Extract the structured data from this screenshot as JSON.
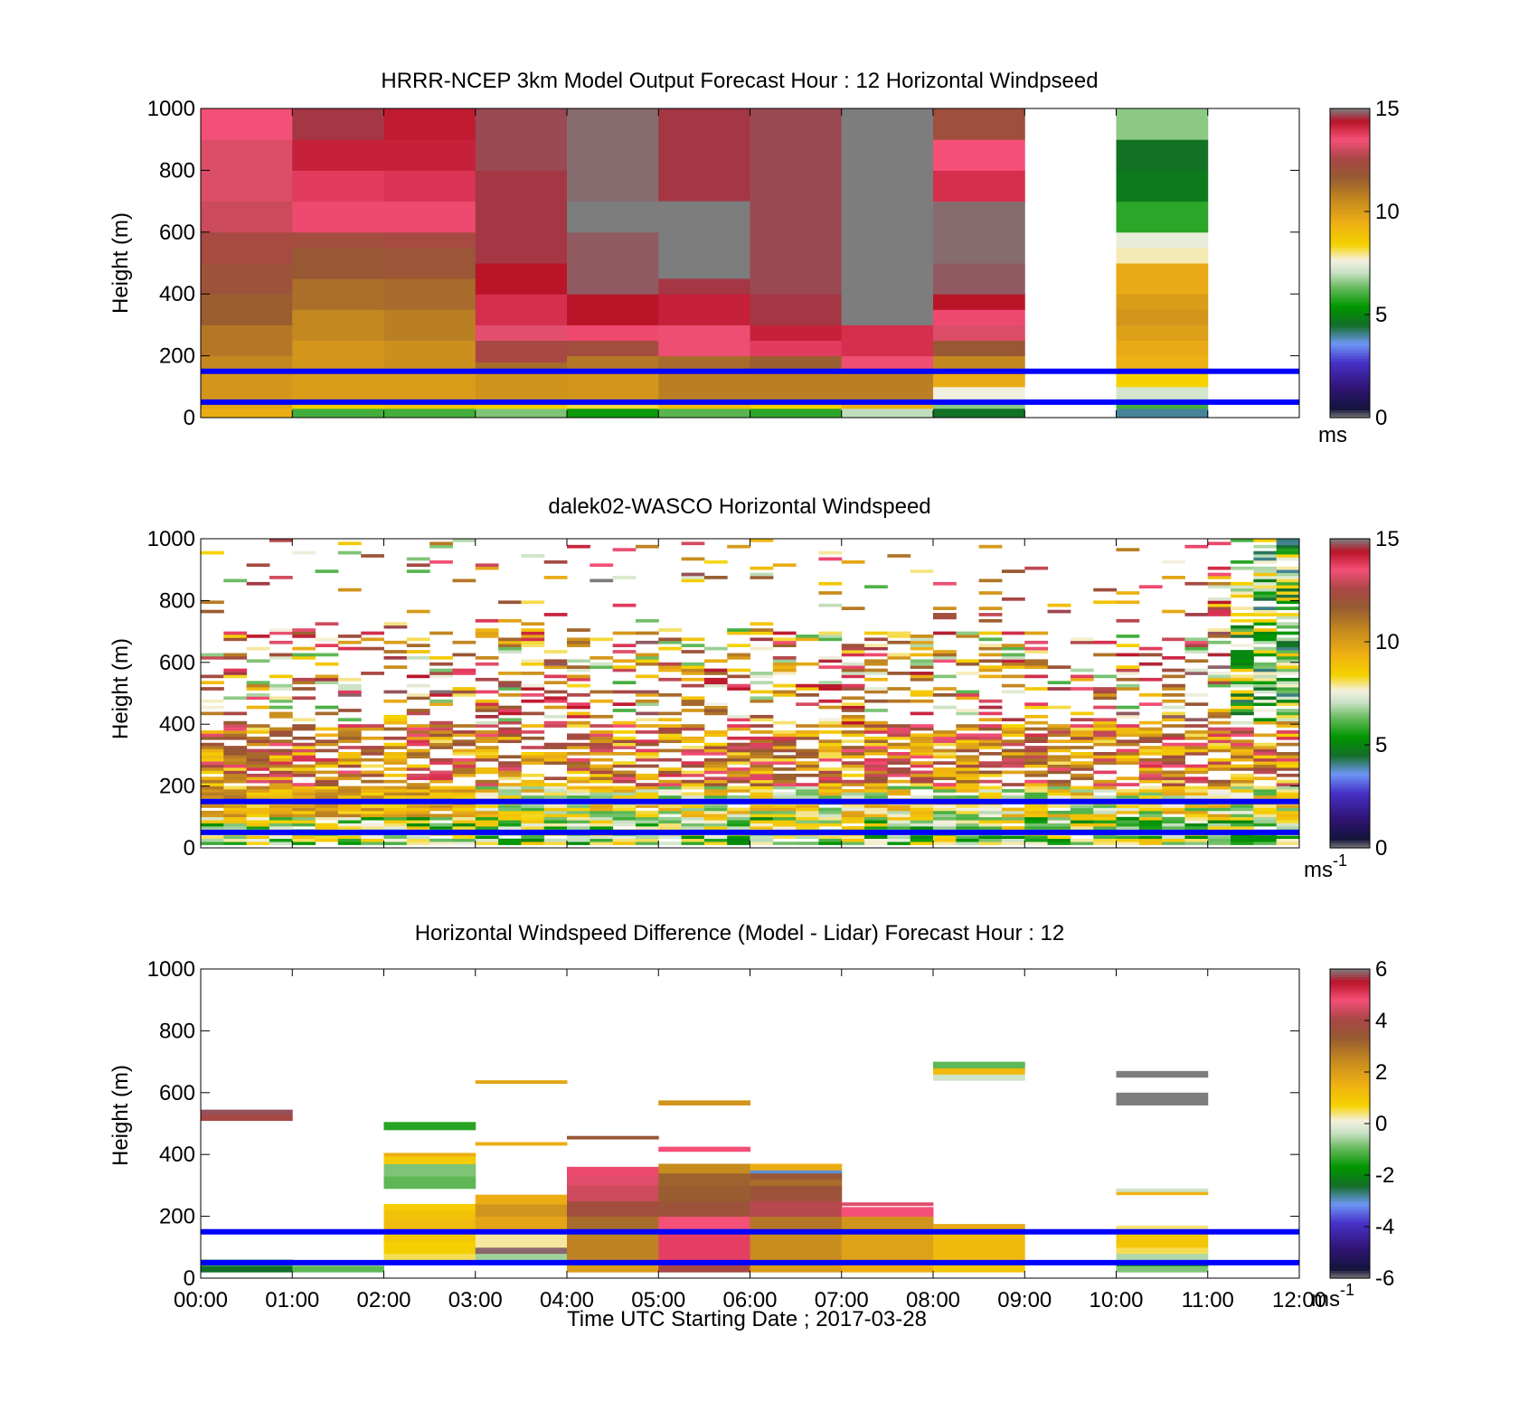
{
  "figure": {
    "xlabel": "Time UTC  Starting Date ; 2017-03-28",
    "shared_x_ticks": [
      "00:00",
      "01:00",
      "02:00",
      "03:00",
      "04:00",
      "05:00",
      "06:00",
      "07:00",
      "08:00",
      "09:00",
      "10:00",
      "11:00",
      "12:00"
    ],
    "reference_lines_m": [
      50,
      150
    ],
    "reference_line_color": "#0000ff"
  },
  "chart_data": [
    {
      "type": "heatmap",
      "title": "HRRR-NCEP 3km Model Output   Forecast Hour : 12 Horizontal Windpseed",
      "xlabel": "",
      "ylabel": "Height (m)",
      "xlim": [
        0,
        12
      ],
      "ylim": [
        0,
        1000
      ],
      "y_ticks": [
        "0",
        "200",
        "400",
        "600",
        "800",
        "1000"
      ],
      "colorbar": {
        "min": 0,
        "max": 15,
        "ticks": [
          "0",
          "5",
          "10",
          "15"
        ],
        "unit": "ms",
        "unit_sup": ""
      },
      "columns": [
        {
          "t": 0,
          "w": 1,
          "cells": [
            [
              0,
              30,
              9.5
            ],
            [
              30,
              60,
              9.8
            ],
            [
              60,
              150,
              10.2
            ],
            [
              150,
              200,
              10.6
            ],
            [
              200,
              300,
              11
            ],
            [
              300,
              400,
              11.6
            ],
            [
              400,
              500,
              12.0
            ],
            [
              500,
              600,
              12.4
            ],
            [
              600,
              700,
              13.0
            ],
            [
              700,
              900,
              13.2
            ],
            [
              900,
              1000,
              13.5
            ]
          ]
        },
        {
          "t": 1,
          "w": 1,
          "cells": [
            [
              0,
              30,
              6
            ],
            [
              30,
              60,
              8.5
            ],
            [
              60,
              150,
              10
            ],
            [
              150,
              250,
              10.2
            ],
            [
              250,
              350,
              10.6
            ],
            [
              350,
              450,
              11.2
            ],
            [
              450,
              550,
              11.8
            ],
            [
              550,
              600,
              12.3
            ],
            [
              600,
              700,
              13.6
            ],
            [
              700,
              800,
              13.8
            ],
            [
              800,
              900,
              14.2
            ],
            [
              900,
              1000,
              14.6
            ]
          ]
        },
        {
          "t": 2,
          "w": 1,
          "cells": [
            [
              0,
              30,
              6
            ],
            [
              30,
              60,
              8.8
            ],
            [
              60,
              150,
              10
            ],
            [
              150,
              250,
              10.4
            ],
            [
              250,
              350,
              10.8
            ],
            [
              350,
              450,
              11.3
            ],
            [
              450,
              550,
              11.9
            ],
            [
              550,
              600,
              12.4
            ],
            [
              600,
              700,
              13.6
            ],
            [
              700,
              800,
              13.9
            ],
            [
              800,
              900,
              14.2
            ],
            [
              900,
              1000,
              14.3
            ]
          ]
        },
        {
          "t": 3,
          "w": 1,
          "cells": [
            [
              0,
              30,
              6.5
            ],
            [
              30,
              60,
              8.5
            ],
            [
              60,
              150,
              10.3
            ],
            [
              150,
              180,
              11.3
            ],
            [
              180,
              250,
              12.5
            ],
            [
              250,
              300,
              13.3
            ],
            [
              300,
              400,
              14.0
            ],
            [
              400,
              500,
              14.4
            ],
            [
              500,
              800,
              14.6
            ],
            [
              800,
              1000,
              14.7
            ]
          ]
        },
        {
          "t": 4,
          "w": 1,
          "cells": [
            [
              0,
              30,
              5.5
            ],
            [
              30,
              60,
              8.2
            ],
            [
              60,
              150,
              10.2
            ],
            [
              150,
              200,
              11.0
            ],
            [
              200,
              250,
              12.3
            ],
            [
              250,
              300,
              13.6
            ],
            [
              300,
              400,
              14.4
            ],
            [
              400,
              600,
              14.8
            ],
            [
              600,
              700,
              15.0
            ],
            [
              700,
              1000,
              14.9
            ]
          ]
        },
        {
          "t": 5,
          "w": 1,
          "cells": [
            [
              0,
              30,
              6.2
            ],
            [
              30,
              60,
              9.0
            ],
            [
              60,
              150,
              10.8
            ],
            [
              150,
              200,
              11.3
            ],
            [
              200,
              300,
              13.4
            ],
            [
              300,
              400,
              14.2
            ],
            [
              400,
              450,
              14.6
            ],
            [
              450,
              700,
              14.9
            ],
            [
              700,
              1000,
              14.6
            ]
          ]
        },
        {
          "t": 5,
          "w": 1,
          "y0": 450,
          "y1": 700,
          "gray": true
        },
        {
          "t": 6,
          "w": 1,
          "cells": [
            [
              0,
              30,
              5.8
            ],
            [
              30,
              60,
              8.4
            ],
            [
              60,
              150,
              10.8
            ],
            [
              150,
              200,
              11.6
            ],
            [
              200,
              250,
              13.8
            ],
            [
              250,
              300,
              14.2
            ],
            [
              300,
              400,
              14.6
            ],
            [
              400,
              1000,
              14.7
            ]
          ]
        },
        {
          "t": 7,
          "w": 1,
          "cells": [
            [
              0,
              30,
              7
            ],
            [
              30,
              60,
              9.4
            ],
            [
              60,
              150,
              10.8
            ],
            [
              150,
              200,
              13.4
            ],
            [
              200,
              300,
              14.0
            ],
            [
              300,
              1000,
              15.5
            ]
          ]
        },
        {
          "t": 8,
          "w": 1,
          "cells": [
            [
              0,
              30,
              4.6
            ],
            [
              30,
              60,
              6.6
            ],
            [
              60,
              100,
              7.6
            ],
            [
              100,
              150,
              9.6
            ],
            [
              150,
              200,
              10.6
            ],
            [
              200,
              250,
              11.8
            ],
            [
              250,
              300,
              13.2
            ],
            [
              300,
              350,
              13.6
            ],
            [
              350,
              400,
              14.4
            ],
            [
              400,
              500,
              14.8
            ],
            [
              500,
              700,
              14.9
            ],
            [
              700,
              800,
              14.0
            ],
            [
              800,
              900,
              13.5
            ],
            [
              900,
              1000,
              12.2
            ]
          ]
        },
        {
          "t": 10,
          "w": 1,
          "cells": [
            [
              0,
              30,
              4.0
            ],
            [
              30,
              60,
              6.0
            ],
            [
              60,
              100,
              7.2
            ],
            [
              100,
              150,
              8.4
            ],
            [
              150,
              200,
              9.4
            ],
            [
              200,
              250,
              9.6
            ],
            [
              250,
              300,
              9.9
            ],
            [
              300,
              350,
              10.2
            ],
            [
              350,
              400,
              10.0
            ],
            [
              400,
              500,
              9.6
            ],
            [
              500,
              550,
              7.8
            ],
            [
              550,
              600,
              7.5
            ],
            [
              600,
              700,
              5.8
            ],
            [
              700,
              800,
              4.8
            ],
            [
              800,
              900,
              4.6
            ],
            [
              900,
              1000,
              6.6
            ]
          ]
        }
      ]
    },
    {
      "type": "heatmap",
      "title": "dalek02-WASCO  Horizontal Windspeed",
      "xlabel": "",
      "ylabel": "Height (m)",
      "xlim": [
        0,
        12
      ],
      "ylim": [
        0,
        1000
      ],
      "y_ticks": [
        "0",
        "200",
        "400",
        "600",
        "800",
        "1000"
      ],
      "colorbar": {
        "min": 0,
        "max": 15,
        "ticks": [
          "0",
          "5",
          "10",
          "15"
        ],
        "unit": "ms",
        "unit_sup": "-1"
      },
      "dense_profile": {
        "columns": 48,
        "seed": 28
      }
    },
    {
      "type": "heatmap",
      "title": "Horizontal Windspeed Difference (Model - Lidar) Forecast Hour : 12",
      "xlabel": "Time UTC  Starting Date ; 2017-03-28",
      "ylabel": "Height (m)",
      "xlim": [
        0,
        12
      ],
      "ylim": [
        0,
        1000
      ],
      "y_ticks": [
        "0",
        "200",
        "400",
        "600",
        "800",
        "1000"
      ],
      "colorbar": {
        "min": -6,
        "max": 6,
        "ticks": [
          "-6",
          "-4",
          "-2",
          "0",
          "2",
          "4",
          "6"
        ],
        "unit": "ms",
        "unit_sup": "-1"
      },
      "columns": [
        {
          "t": 0,
          "w": 1,
          "cells": [
            [
              20,
              40,
              -2.4
            ],
            [
              40,
              60,
              -1.2
            ],
            [
              510,
              530,
              4.0
            ],
            [
              530,
              545,
              5.8
            ]
          ]
        },
        {
          "t": 1,
          "w": 1,
          "cells": [
            [
              20,
              40,
              -1.0
            ]
          ]
        },
        {
          "t": 2,
          "w": 1,
          "cells": [
            [
              60,
              80,
              0.5
            ],
            [
              80,
              120,
              0.8
            ],
            [
              120,
              150,
              1.0
            ],
            [
              150,
              190,
              1.3
            ],
            [
              190,
              220,
              1.1
            ],
            [
              220,
              240,
              0.9
            ],
            [
              290,
              330,
              -1.0
            ],
            [
              330,
              370,
              -0.8
            ],
            [
              370,
              395,
              0.9
            ],
            [
              395,
              405,
              1.6
            ],
            [
              480,
              505,
              -1.4
            ]
          ]
        },
        {
          "t": 3,
          "w": 1,
          "cells": [
            [
              60,
              80,
              -0.6
            ],
            [
              80,
              100,
              5.9
            ],
            [
              100,
              150,
              0.3
            ],
            [
              150,
              200,
              1.8
            ],
            [
              200,
              240,
              2.2
            ],
            [
              240,
              270,
              1.6
            ],
            [
              430,
              440,
              1.6
            ],
            [
              630,
              640,
              1.8
            ]
          ]
        },
        {
          "t": 4,
          "w": 1,
          "cells": [
            [
              20,
              60,
              2.0
            ],
            [
              60,
              150,
              2.6
            ],
            [
              150,
              200,
              3.0
            ],
            [
              200,
              250,
              3.8
            ],
            [
              250,
              300,
              4.4
            ],
            [
              300,
              330,
              4.6
            ],
            [
              330,
              360,
              4.9
            ],
            [
              450,
              460,
              3.5
            ]
          ]
        },
        {
          "t": 5,
          "w": 1,
          "cells": [
            [
              20,
              60,
              4.0
            ],
            [
              60,
              150,
              5.0
            ],
            [
              150,
              200,
              4.8
            ],
            [
              200,
              250,
              3.6
            ],
            [
              250,
              300,
              3.3
            ],
            [
              300,
              340,
              3.2
            ],
            [
              340,
              370,
              2.4
            ],
            [
              410,
              425,
              4.8
            ],
            [
              560,
              575,
              2.2
            ]
          ]
        },
        {
          "t": 6,
          "w": 1,
          "cells": [
            [
              20,
              60,
              2.0
            ],
            [
              60,
              150,
              2.4
            ],
            [
              150,
              200,
              2.8
            ],
            [
              200,
              250,
              4.2
            ],
            [
              250,
              300,
              3.6
            ],
            [
              300,
              320,
              3.0
            ],
            [
              320,
              340,
              3.5
            ],
            [
              340,
              350,
              -3.0
            ],
            [
              350,
              370,
              1.6
            ]
          ]
        },
        {
          "t": 7,
          "w": 1,
          "cells": [
            [
              20,
              60,
              1.6
            ],
            [
              60,
              150,
              1.9
            ],
            [
              150,
              200,
              2.2
            ],
            [
              200,
              230,
              4.8
            ],
            [
              235,
              245,
              4.6
            ]
          ]
        },
        {
          "t": 8,
          "w": 1,
          "cells": [
            [
              20,
              60,
              1.0
            ],
            [
              60,
              150,
              1.3
            ],
            [
              150,
              175,
              1.7
            ],
            [
              640,
              660,
              -0.3
            ],
            [
              660,
              680,
              1.3
            ],
            [
              680,
              700,
              -1.0
            ]
          ]
        },
        {
          "t": 10,
          "w": 1,
          "cells": [
            [
              20,
              40,
              -0.8
            ],
            [
              40,
              60,
              -1.6
            ],
            [
              60,
              80,
              -0.5
            ],
            [
              80,
              100,
              0.5
            ],
            [
              100,
              150,
              1.0
            ],
            [
              150,
              170,
              0.4
            ],
            [
              270,
              280,
              1.5
            ],
            [
              280,
              290,
              -0.3
            ],
            [
              560,
              600,
              6.5
            ],
            [
              650,
              670,
              6.5
            ]
          ]
        }
      ]
    }
  ]
}
